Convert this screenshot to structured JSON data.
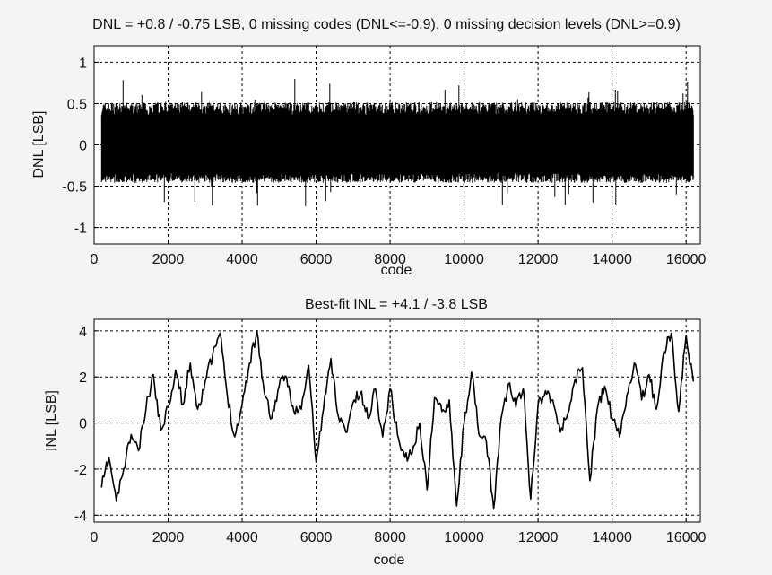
{
  "chart_data": [
    {
      "type": "line",
      "title": "DNL = +0.8 / -0.75 LSB,  0 missing codes (DNL<=-0.9), 0 missing decision levels (DNL>=0.9)",
      "xlabel": "code",
      "ylabel": "DNL [LSB]",
      "xlim": [
        0,
        16384
      ],
      "ylim": [
        -1.2,
        1.2
      ],
      "xticks": [
        0,
        2000,
        4000,
        6000,
        8000,
        10000,
        12000,
        14000,
        16000
      ],
      "xtick_labels": [
        "0",
        "2000",
        "4000",
        "6000",
        "8000",
        "10000",
        "12000",
        "14000",
        "16000"
      ],
      "yticks": [
        1,
        0.5,
        0,
        -0.5,
        -1
      ],
      "ytick_labels": [
        "1",
        "0.5",
        "0",
        "-0.5",
        "-1"
      ],
      "grid": true,
      "series": [
        {
          "code_range": [
            200,
            16200
          ],
          "typical_range": [
            -0.4,
            0.45
          ],
          "max": 0.8,
          "min": -0.75
        }
      ]
    },
    {
      "type": "line",
      "title": "Best-fit INL = +4.1 / -3.8 LSB",
      "xlabel": "code",
      "ylabel": "INL [LSB]",
      "xlim": [
        0,
        16384
      ],
      "ylim": [
        -4.3,
        4.5
      ],
      "xticks": [
        0,
        2000,
        4000,
        6000,
        8000,
        10000,
        12000,
        14000,
        16000
      ],
      "xtick_labels": [
        "0",
        "2000",
        "4000",
        "6000",
        "8000",
        "10000",
        "12000",
        "14000",
        "16000"
      ],
      "yticks": [
        4,
        2,
        0,
        -2,
        -4
      ],
      "ytick_labels": [
        "4",
        "2",
        "0",
        "-2",
        "-4"
      ],
      "grid": true,
      "series": [
        {
          "x": [
            200,
            400,
            600,
            800,
            1000,
            1200,
            1400,
            1600,
            1800,
            2000,
            2200,
            2400,
            2600,
            2800,
            3000,
            3200,
            3400,
            3600,
            3800,
            4000,
            4200,
            4400,
            4600,
            4800,
            5000,
            5200,
            5400,
            5600,
            5800,
            6000,
            6200,
            6400,
            6600,
            6800,
            7000,
            7200,
            7400,
            7600,
            7800,
            8000,
            8200,
            8400,
            8600,
            8800,
            9000,
            9200,
            9400,
            9600,
            9800,
            10000,
            10200,
            10400,
            10600,
            10800,
            11000,
            11200,
            11400,
            11600,
            11800,
            12000,
            12200,
            12400,
            12600,
            12800,
            13000,
            13200,
            13400,
            13600,
            13800,
            14000,
            14200,
            14400,
            14600,
            14800,
            15000,
            15200,
            15400,
            15600,
            15800,
            16000,
            16200
          ],
          "y": [
            -2.8,
            -1.5,
            -3.4,
            -2.0,
            -0.5,
            -1.2,
            0.6,
            2.1,
            -0.3,
            0.7,
            2.3,
            0.8,
            2.6,
            0.6,
            1.8,
            2.9,
            3.9,
            1.2,
            -0.6,
            0.8,
            2.6,
            4.0,
            1.3,
            0.2,
            1.6,
            2.0,
            0.5,
            0.6,
            2.5,
            -1.7,
            0.6,
            2.8,
            0.3,
            -0.4,
            0.9,
            1.3,
            0.2,
            1.5,
            -0.6,
            1.5,
            -0.5,
            -1.5,
            -1.3,
            0.0,
            -2.9,
            1.1,
            0.5,
            1.0,
            -3.6,
            0.0,
            2.2,
            -0.5,
            -0.8,
            -3.7,
            0.2,
            1.7,
            0.7,
            1.5,
            -3.3,
            0.8,
            1.4,
            1.0,
            -0.4,
            0.4,
            1.9,
            2.4,
            -2.5,
            0.6,
            1.6,
            0.2,
            -0.6,
            1.2,
            2.6,
            1.0,
            2.1,
            0.6,
            3.1,
            3.9,
            0.5,
            3.8,
            1.8
          ]
        }
      ]
    }
  ]
}
